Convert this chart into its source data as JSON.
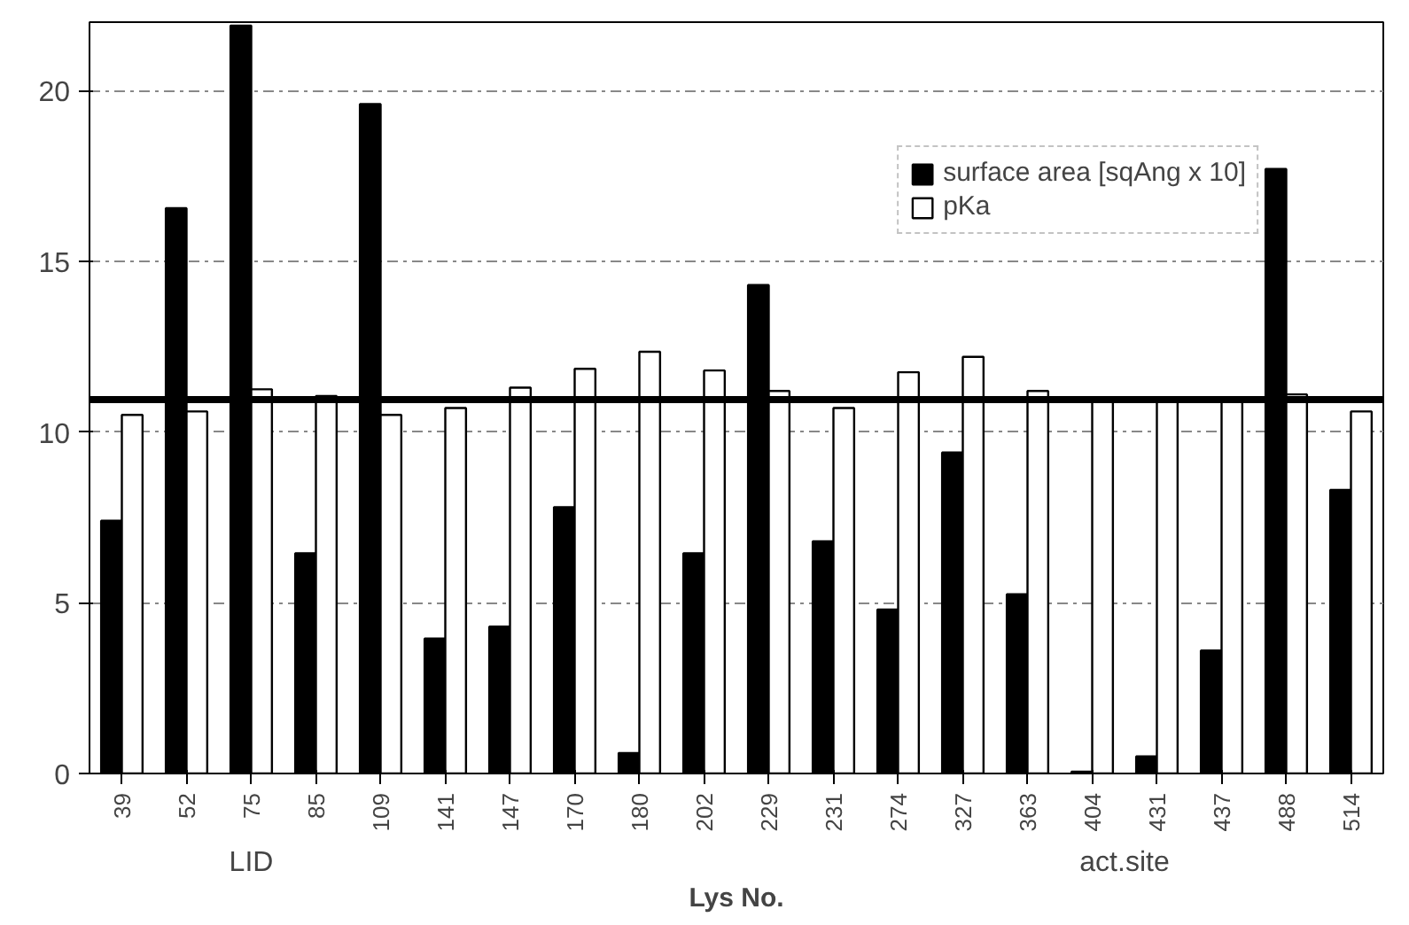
{
  "chart_data": {
    "type": "bar",
    "xlabel": "Lys No.",
    "categories": [
      "39",
      "52",
      "75",
      "85",
      "109",
      "141",
      "147",
      "170",
      "180",
      "202",
      "229",
      "231",
      "274",
      "327",
      "363",
      "404",
      "431",
      "437",
      "488",
      "514"
    ],
    "series": [
      {
        "name": "surface area [sqAng x 10]",
        "color": "#000000",
        "values": [
          7.4,
          16.55,
          21.9,
          6.45,
          19.6,
          3.95,
          4.3,
          7.8,
          0.6,
          6.45,
          14.3,
          6.8,
          4.8,
          9.4,
          5.25,
          0.05,
          0.5,
          3.6,
          17.7,
          8.3
        ]
      },
      {
        "name": "pKa",
        "color": "#ffffff",
        "values": [
          10.5,
          10.6,
          11.25,
          11.05,
          10.5,
          10.7,
          11.3,
          11.85,
          12.35,
          11.8,
          11.2,
          10.7,
          11.75,
          12.2,
          11.2,
          11.0,
          11.0,
          11.0,
          11.1,
          10.6
        ]
      }
    ],
    "ylim": [
      0,
      22
    ],
    "yticks": [
      0,
      5,
      10,
      15,
      20
    ],
    "grid": "y",
    "legend": "top right",
    "ref_lines": [
      {
        "axis": "y",
        "value": 10.95,
        "color": "#000000"
      }
    ],
    "annotations": [
      "LID",
      "act.site"
    ]
  }
}
